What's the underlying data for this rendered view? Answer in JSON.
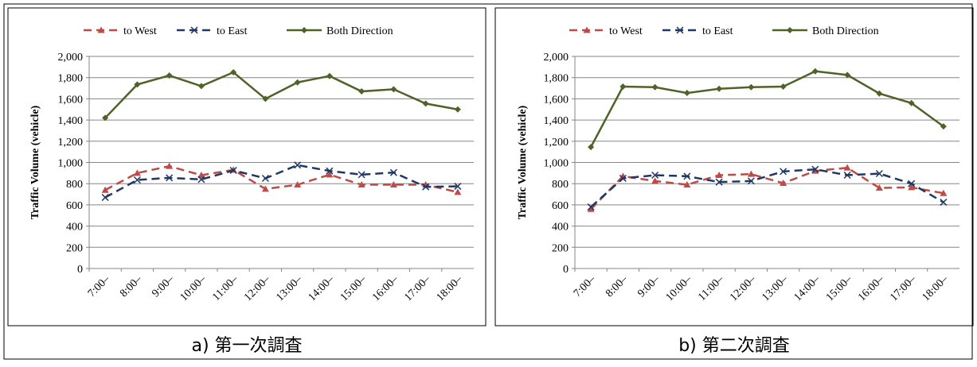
{
  "chart_data": [
    {
      "type": "line",
      "caption": "a)  第一次調査",
      "ylabel": "Traffic Volume (vehicle)",
      "categories": [
        "7:00–",
        "8:00–",
        "9:00–",
        "10:00–",
        "11:00–",
        "12:00–",
        "13:00–",
        "14:00–",
        "15:00–",
        "16:00–",
        "17:00–",
        "18:00–"
      ],
      "series": [
        {
          "name": "to West",
          "color": "#be4b48",
          "marker": "triangle",
          "dashed": true,
          "values": [
            740,
            900,
            965,
            880,
            930,
            750,
            790,
            885,
            790,
            790,
            790,
            720
          ]
        },
        {
          "name": "to East",
          "color": "#1f3864",
          "marker": "x",
          "dashed": true,
          "values": [
            670,
            835,
            855,
            840,
            925,
            850,
            975,
            920,
            885,
            905,
            770,
            775
          ]
        },
        {
          "name": "Both Direction",
          "color": "#4f6228",
          "marker": "diamond",
          "dashed": false,
          "values": [
            1420,
            1735,
            1820,
            1720,
            1850,
            1600,
            1755,
            1815,
            1670,
            1690,
            1555,
            1500
          ]
        }
      ],
      "ylim": [
        0,
        2000
      ],
      "yticks": [
        0,
        200,
        400,
        600,
        800,
        {
          "value": 1000,
          "label": "1,000"
        },
        {
          "value": 1200,
          "label": "1,200"
        },
        {
          "value": 1400,
          "label": "1,400"
        },
        {
          "value": 1600,
          "label": "1,600"
        },
        {
          "value": 1800,
          "label": "1,800"
        },
        {
          "value": 2000,
          "label": "2,000"
        }
      ],
      "grid": true,
      "legend": "top"
    },
    {
      "type": "line",
      "caption": "b)  第二次調査",
      "ylabel": "Traffic Volume (vehicle)",
      "categories": [
        "7:00–",
        "8:00–",
        "9:00–",
        "10:00–",
        "11:00–",
        "12:00–",
        "13:00–",
        "14:00–",
        "15:00–",
        "16:00–",
        "17:00–",
        "18:00–"
      ],
      "series": [
        {
          "name": "to West",
          "color": "#be4b48",
          "marker": "triangle",
          "dashed": true,
          "values": [
            560,
            870,
            825,
            790,
            880,
            890,
            805,
            920,
            950,
            760,
            765,
            710
          ]
        },
        {
          "name": "to East",
          "color": "#1f3864",
          "marker": "x",
          "dashed": true,
          "values": [
            580,
            850,
            880,
            870,
            815,
            825,
            915,
            935,
            880,
            895,
            800,
            625
          ]
        },
        {
          "name": "Both Direction",
          "color": "#4f6228",
          "marker": "diamond",
          "dashed": false,
          "values": [
            1145,
            1715,
            1710,
            1655,
            1695,
            1710,
            1715,
            1860,
            1825,
            1650,
            1560,
            1340
          ]
        }
      ],
      "ylim": [
        0,
        2000
      ],
      "yticks": [
        0,
        200,
        400,
        600,
        800,
        {
          "value": 1000,
          "label": "1,000"
        },
        {
          "value": 1200,
          "label": "1,200"
        },
        {
          "value": 1400,
          "label": "1,400"
        },
        {
          "value": 1600,
          "label": "1,600"
        },
        {
          "value": 1800,
          "label": "1,800"
        },
        {
          "value": 2000,
          "label": "2,000"
        }
      ],
      "grid": true,
      "legend": "top"
    }
  ]
}
